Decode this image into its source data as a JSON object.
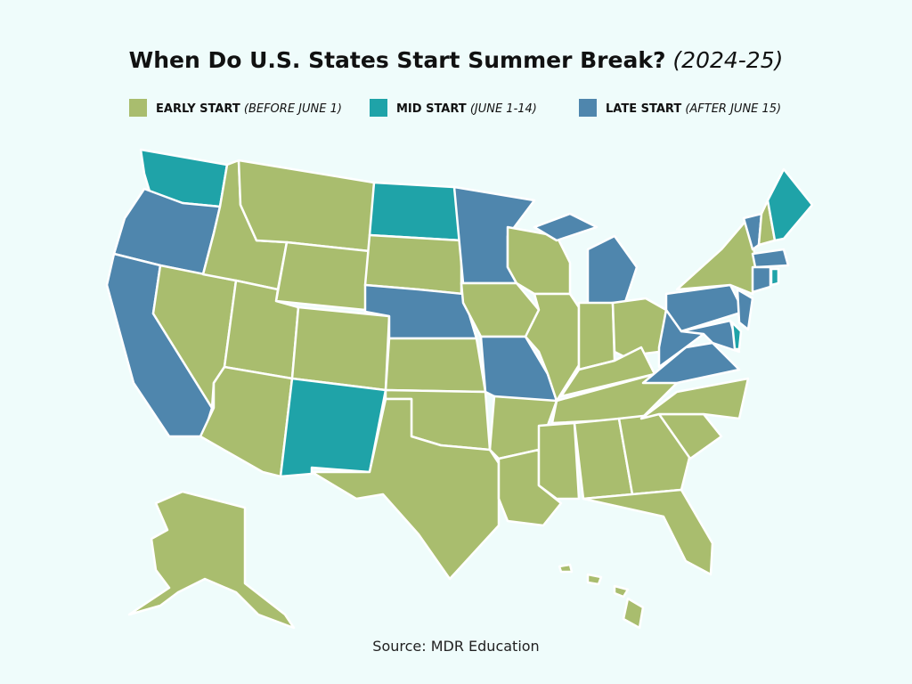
{
  "header": {
    "title": "When Do U.S. States Start Summer Break?",
    "title_period": "(2024-25)"
  },
  "legend": {
    "items": [
      {
        "label": "EARLY START",
        "note": "(BEFORE JUNE 1)",
        "color": "#a9bd6e"
      },
      {
        "label": "MID START",
        "note": "(JUNE 1-14)",
        "color": "#1fa3a8"
      },
      {
        "label": "LATE START",
        "note": "(AFTER JUNE 15)",
        "color": "#4f86ad"
      }
    ]
  },
  "footer": {
    "source": "Source: MDR Education"
  }
}
